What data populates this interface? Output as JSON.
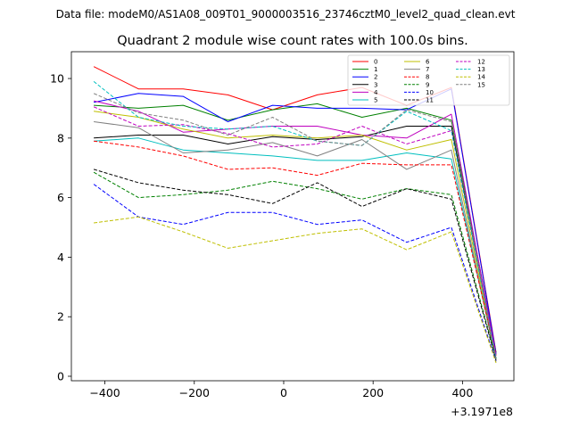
{
  "figure": {
    "suptitle": "Data file: modeM0/AS1A08_009T01_9000003516_23746cztM0_level2_quad_clean.evt"
  },
  "chart_data": {
    "type": "line",
    "title": "Quadrant 2 module wise count rates with 100.0s bins.",
    "xlabel": "",
    "ylabel": "",
    "x_offset_label": "+3.1971e8",
    "xlim": [
      -475,
      515
    ],
    "ylim": [
      -0.15,
      10.9
    ],
    "x_ticks": [
      -400,
      -200,
      0,
      200,
      400
    ],
    "x_tick_labels": [
      "−400",
      "−200",
      "0",
      "200",
      "400"
    ],
    "y_ticks": [
      0,
      2,
      4,
      6,
      8,
      10
    ],
    "y_tick_labels": [
      "0",
      "2",
      "4",
      "6",
      "8",
      "10"
    ],
    "x": [
      -425,
      -325,
      -225,
      -125,
      -25,
      75,
      175,
      275,
      375,
      475
    ],
    "legend_position": "top-right",
    "series": [
      {
        "name": "0",
        "color": "#ff0000",
        "dash": "solid",
        "values": [
          10.4,
          9.65,
          9.65,
          9.45,
          8.95,
          9.45,
          9.7,
          9.1,
          9.7,
          0.8
        ]
      },
      {
        "name": "1",
        "color": "#008000",
        "dash": "solid",
        "values": [
          9.1,
          9.0,
          9.1,
          8.6,
          8.95,
          9.15,
          8.7,
          9.0,
          8.6,
          0.8
        ]
      },
      {
        "name": "2",
        "color": "#0000ff",
        "dash": "solid",
        "values": [
          9.2,
          9.5,
          9.4,
          8.55,
          9.1,
          9.0,
          9.0,
          8.95,
          9.65,
          0.75
        ]
      },
      {
        "name": "3",
        "color": "#000000",
        "dash": "solid",
        "values": [
          8.0,
          8.1,
          8.1,
          7.8,
          8.05,
          7.95,
          8.05,
          8.4,
          8.4,
          0.6
        ]
      },
      {
        "name": "4",
        "color": "#bf00bf",
        "dash": "solid",
        "values": [
          9.25,
          8.9,
          8.2,
          8.3,
          8.4,
          8.4,
          8.1,
          8.0,
          8.8,
          0.7
        ]
      },
      {
        "name": "5",
        "color": "#00bfbf",
        "dash": "solid",
        "values": [
          7.9,
          8.0,
          7.6,
          7.5,
          7.4,
          7.25,
          7.25,
          7.5,
          7.3,
          0.6
        ]
      },
      {
        "name": "6",
        "color": "#bfbf00",
        "dash": "solid",
        "values": [
          8.9,
          8.7,
          8.3,
          8.0,
          8.1,
          8.0,
          8.1,
          7.6,
          7.95,
          0.55
        ]
      },
      {
        "name": "7",
        "color": "#808080",
        "dash": "solid",
        "values": [
          8.55,
          8.35,
          7.5,
          7.6,
          7.85,
          7.4,
          7.95,
          6.95,
          7.6,
          0.5
        ]
      },
      {
        "name": "8",
        "color": "#ff0000",
        "dash": "dashed",
        "values": [
          7.9,
          7.7,
          7.4,
          6.95,
          7.0,
          6.75,
          7.15,
          7.1,
          7.1,
          0.7
        ]
      },
      {
        "name": "9",
        "color": "#008000",
        "dash": "dashed",
        "values": [
          6.85,
          6.0,
          6.1,
          6.25,
          6.55,
          6.3,
          5.95,
          6.3,
          6.1,
          0.6
        ]
      },
      {
        "name": "10",
        "color": "#0000ff",
        "dash": "dashed",
        "values": [
          6.45,
          5.35,
          5.1,
          5.5,
          5.5,
          5.1,
          5.25,
          4.5,
          5.0,
          0.5
        ]
      },
      {
        "name": "11",
        "color": "#000000",
        "dash": "dashed",
        "values": [
          6.95,
          6.5,
          6.25,
          6.1,
          5.8,
          6.5,
          5.7,
          6.3,
          5.95,
          0.55
        ]
      },
      {
        "name": "12",
        "color": "#bf00bf",
        "dash": "dashed",
        "values": [
          9.05,
          8.4,
          8.45,
          8.15,
          7.7,
          7.8,
          8.4,
          7.8,
          8.25,
          0.65
        ]
      },
      {
        "name": "13",
        "color": "#00bfbf",
        "dash": "dashed",
        "values": [
          9.9,
          8.7,
          8.4,
          8.3,
          8.4,
          7.9,
          7.75,
          8.9,
          8.25,
          0.6
        ]
      },
      {
        "name": "14",
        "color": "#bfbf00",
        "dash": "dashed",
        "values": [
          5.15,
          5.35,
          4.85,
          4.3,
          4.55,
          4.8,
          4.95,
          4.25,
          4.85,
          0.45
        ]
      },
      {
        "name": "15",
        "color": "#808080",
        "dash": "dashed",
        "values": [
          9.5,
          8.85,
          8.6,
          8.1,
          8.7,
          7.9,
          7.75,
          8.95,
          8.55,
          0.55
        ]
      }
    ]
  }
}
